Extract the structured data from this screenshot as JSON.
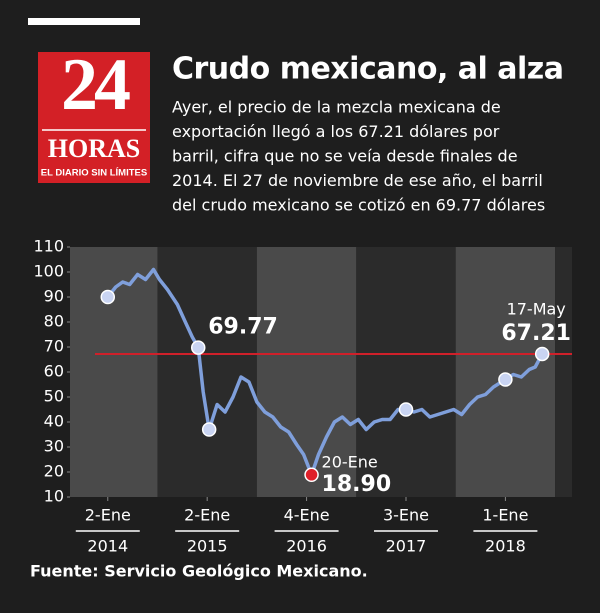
{
  "logo": {
    "number": "24",
    "word": "HORAS",
    "tagline": "EL DIARIO SIN LÍMITES"
  },
  "chart_data": {
    "type": "line",
    "title": "Crudo mexicano, al alza",
    "subtitle_lines": [
      "Ayer, el precio de la mezcla mexicana de",
      "exportación llegó a los 67.21 dólares por",
      "barril, cifra que no se veía desde finales de",
      "2014. El 27 de noviembre de ese año, el barril",
      "del crudo mexicano se cotizó en 69.77 dólares"
    ],
    "source": "Fuente: Servicio Geológico Mexicano.",
    "x": [
      2014.0,
      2014.08,
      2014.15,
      2014.22,
      2014.3,
      2014.38,
      2014.46,
      2014.52,
      2014.6,
      2014.7,
      2014.78,
      2014.85,
      2014.91,
      2014.96,
      2015.02,
      2015.1,
      2015.18,
      2015.26,
      2015.34,
      2015.42,
      2015.5,
      2015.58,
      2015.66,
      2015.74,
      2015.82,
      2015.9,
      2015.97,
      2016.05,
      2016.12,
      2016.2,
      2016.28,
      2016.36,
      2016.44,
      2016.52,
      2016.6,
      2016.68,
      2016.76,
      2016.84,
      2016.92,
      2017.0,
      2017.08,
      2017.16,
      2017.24,
      2017.32,
      2017.4,
      2017.48,
      2017.56,
      2017.64,
      2017.72,
      2017.8,
      2017.88,
      2017.96,
      2018.0,
      2018.08,
      2018.16,
      2018.24,
      2018.3,
      2018.37
    ],
    "series": [
      {
        "color": "#7f9fdb",
        "values": [
          90,
          94,
          96,
          95,
          99,
          97,
          101,
          97,
          93,
          87,
          80,
          74,
          69.77,
          52,
          37,
          47,
          44,
          50,
          58,
          56,
          48,
          44,
          42,
          38,
          36,
          31,
          27,
          18.9,
          27,
          34,
          40,
          42,
          39,
          41,
          37,
          40,
          41,
          41,
          45,
          45,
          44,
          45,
          42,
          43,
          44,
          45,
          43,
          47,
          50,
          51,
          54,
          56,
          57,
          59,
          58,
          61,
          62,
          67.21
        ]
      }
    ],
    "markers": [
      {
        "point": 0,
        "color": "#c9d4f2"
      },
      {
        "point": 12,
        "color": "#c9d4f2"
      },
      {
        "point": 14,
        "color": "#c9d4f2"
      },
      {
        "point": 27,
        "color": "#e0202a"
      },
      {
        "point": 39,
        "color": "#c9d4f2"
      },
      {
        "point": 52,
        "color": "#c9d4f2"
      },
      {
        "point": 57,
        "color": "#c9d4f2"
      }
    ],
    "annotations": [
      {
        "lines": [
          "69.77"
        ],
        "point": 12,
        "position": "right"
      },
      {
        "lines": [
          "20-Ene",
          "18.90"
        ],
        "point": 27,
        "position": "right"
      },
      {
        "lines": [
          "17-May",
          "67.21"
        ],
        "point": 57,
        "position": "above"
      }
    ],
    "reference_line": {
      "value": 67.21,
      "color": "#d0202a"
    },
    "xlim": [
      2013.62,
      2018.67
    ],
    "xticks": [
      2014,
      2015,
      2016,
      2017,
      2018
    ],
    "xtick_day_labels": [
      "2-Ene",
      "2-Ene",
      "4-Ene",
      "3-Ene",
      "1-Ene"
    ],
    "band_colors": [
      "#4a4a4a",
      "#2b2b2b"
    ],
    "ylim": [
      10,
      110
    ],
    "yticks": [
      10,
      20,
      30,
      40,
      50,
      60,
      70,
      80,
      90,
      100,
      110
    ]
  }
}
